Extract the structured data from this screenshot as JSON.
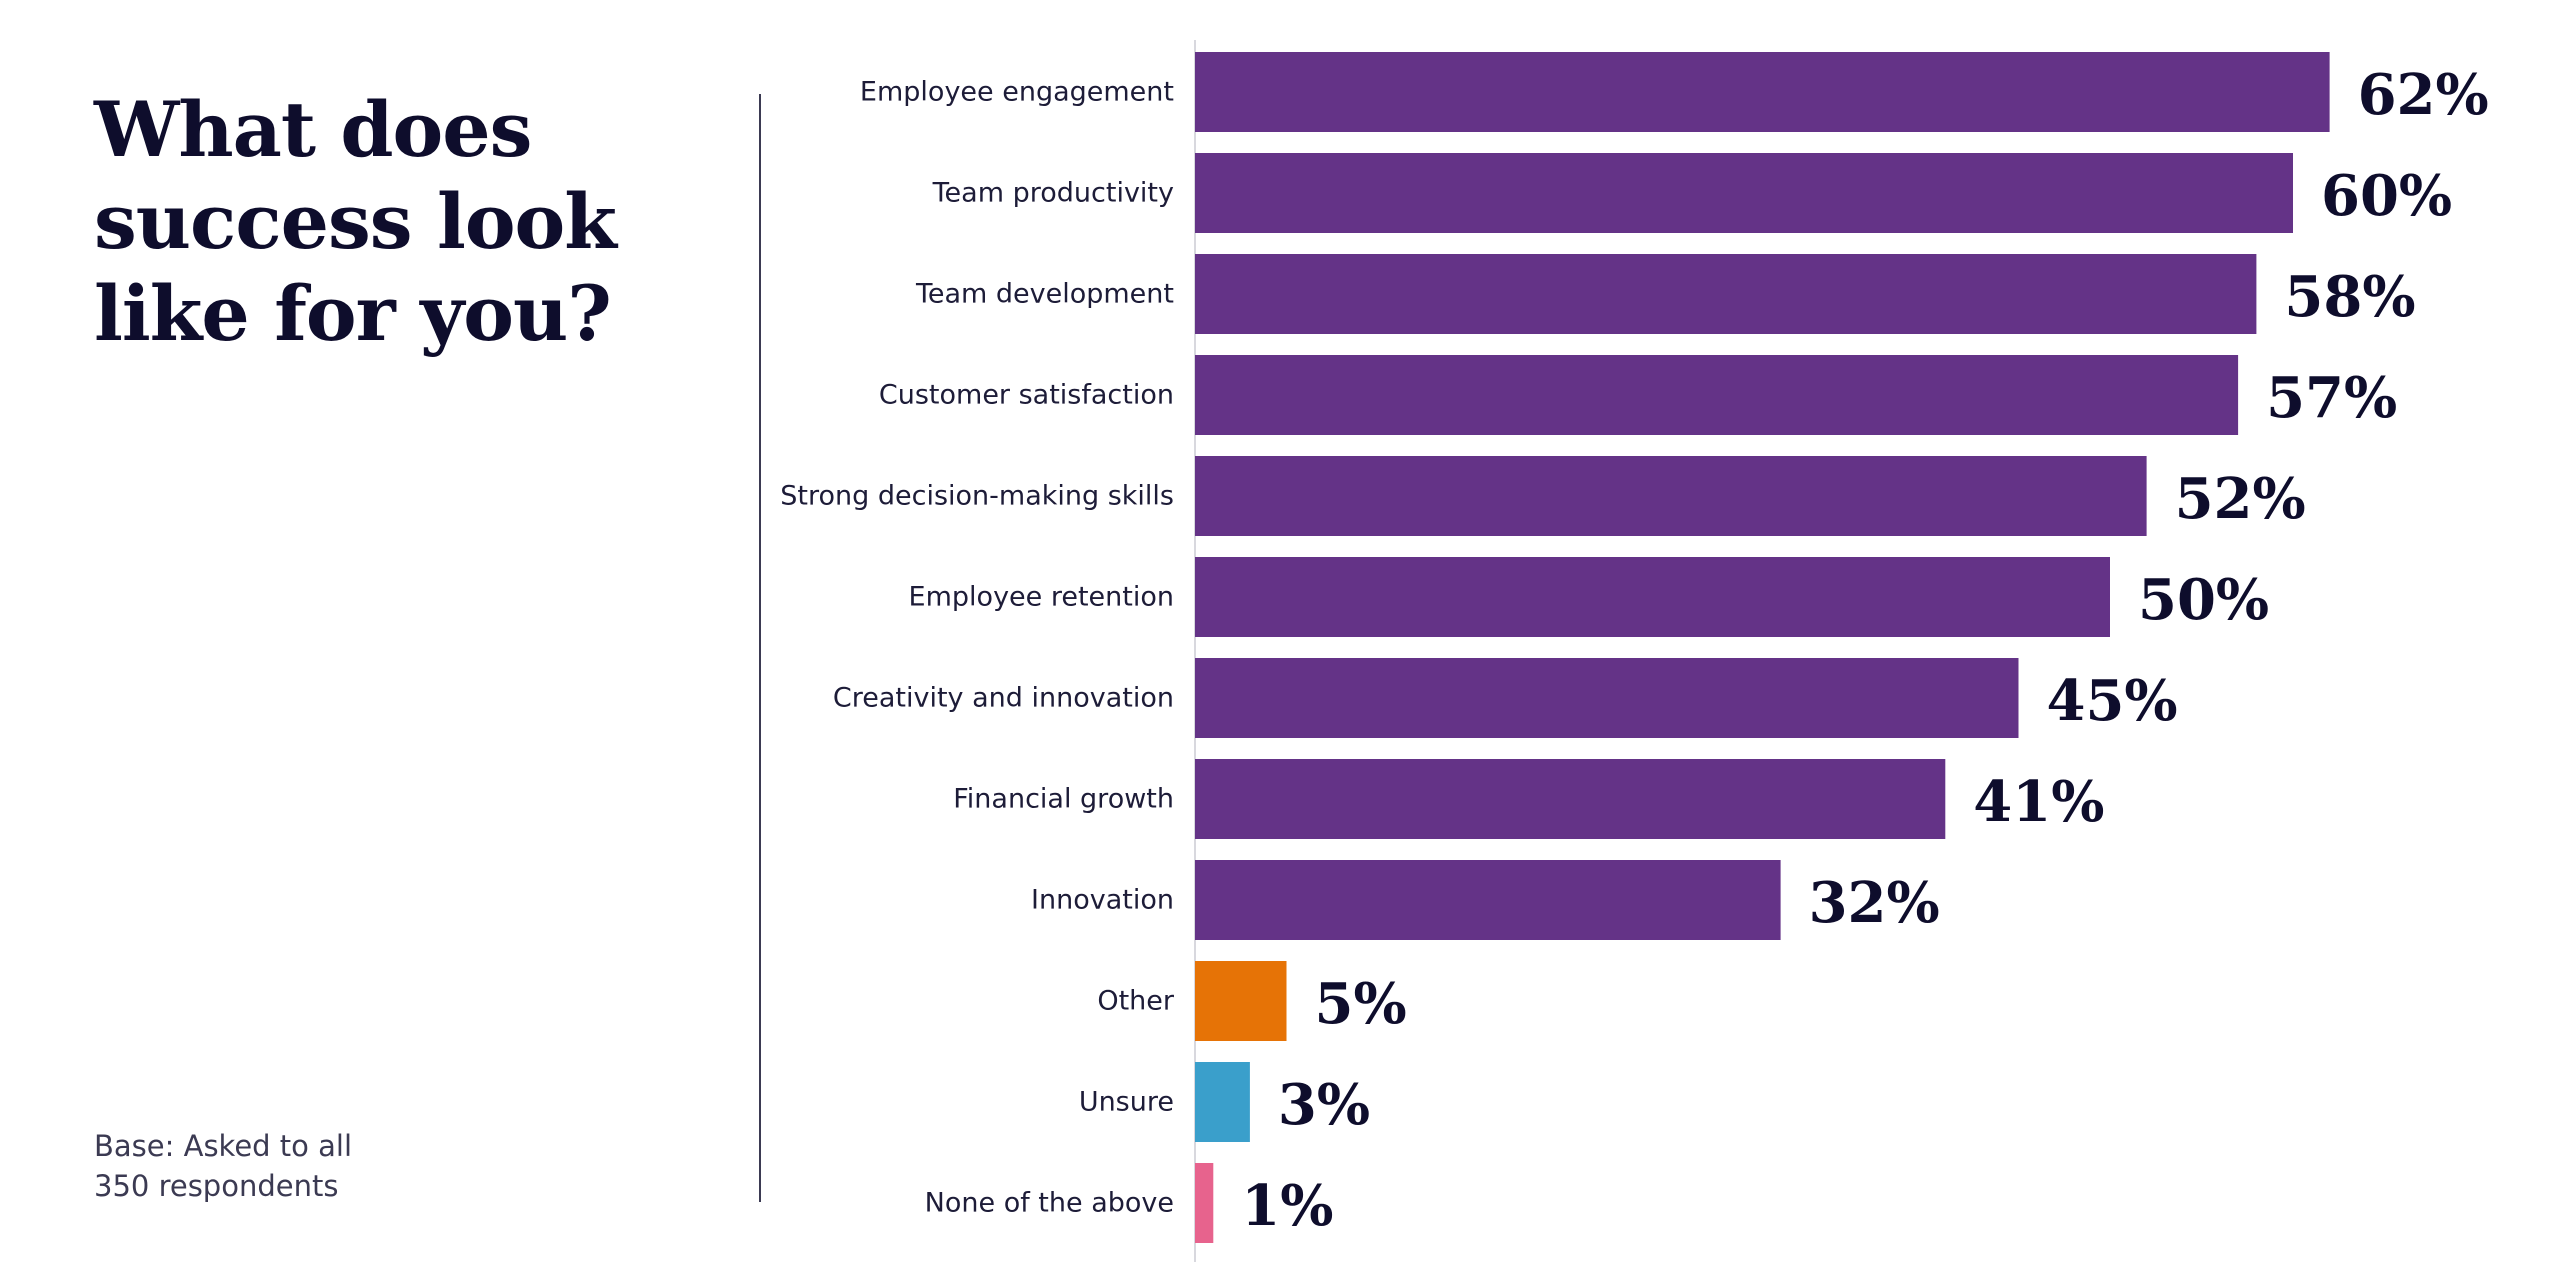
{
  "title": {
    "line1": "What does",
    "line2": "success look",
    "line3": "like for you?"
  },
  "base_note": {
    "line1": "Base: Asked to all",
    "line2": "350 respondents"
  },
  "colors": {
    "primary_bar": "#643387",
    "other_bar": "#e67306",
    "unsure_bar": "#3a9fcb",
    "none_bar": "#e7638d",
    "axis_line": "#d8d8de",
    "text": "#0e0d2c"
  },
  "chart_data": {
    "type": "bar",
    "orientation": "horizontal",
    "title": "What does success look like for you?",
    "unit": "%",
    "xlim": [
      0,
      100
    ],
    "grid": false,
    "categories": [
      "Employee engagement",
      "Team productivity",
      "Team development",
      "Customer satisfaction",
      "Strong decision-making skills",
      "Employee retention",
      "Creativity and innovation",
      "Financial growth",
      "Innovation",
      "Other",
      "Unsure",
      "None of the above"
    ],
    "values": [
      62,
      60,
      58,
      57,
      52,
      50,
      45,
      41,
      32,
      5,
      3,
      1
    ],
    "value_labels": [
      "62%",
      "60%",
      "58%",
      "57%",
      "52%",
      "50%",
      "45%",
      "41%",
      "32%",
      "5%",
      "3%",
      "1%"
    ],
    "bar_colors": [
      "#643387",
      "#643387",
      "#643387",
      "#643387",
      "#643387",
      "#643387",
      "#643387",
      "#643387",
      "#643387",
      "#e67306",
      "#3a9fcb",
      "#e7638d"
    ]
  }
}
